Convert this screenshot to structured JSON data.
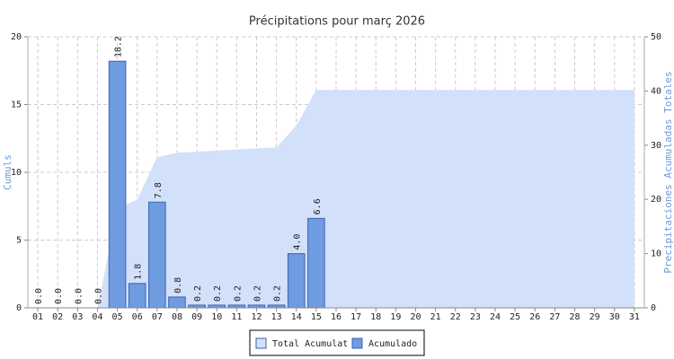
{
  "chart_data": {
    "type": "bar",
    "title": "Précipitations pour març 2026",
    "y_label": "Cumuls",
    "y2_label": "Precipitaciones Acumuladas Totales",
    "categories": [
      "01",
      "02",
      "03",
      "04",
      "05",
      "06",
      "07",
      "08",
      "09",
      "10",
      "11",
      "12",
      "13",
      "14",
      "15",
      "16",
      "17",
      "18",
      "19",
      "20",
      "21",
      "22",
      "23",
      "24",
      "25",
      "26",
      "27",
      "28",
      "29",
      "30",
      "31"
    ],
    "series": [
      {
        "name": "Total Acumulat",
        "type": "area",
        "axis": "y2",
        "color": "#d3e0fa",
        "stroke": "#3a5fa8",
        "values": [
          0,
          0,
          0,
          0,
          18.2,
          20.0,
          27.8,
          28.6,
          28.8,
          29.0,
          29.2,
          29.4,
          29.6,
          33.6,
          40.2,
          40.2,
          40.2,
          40.2,
          40.2,
          40.2,
          40.2,
          40.2,
          40.2,
          40.2,
          40.2,
          40.2,
          40.2,
          40.2,
          40.2,
          40.2,
          40.2
        ]
      },
      {
        "name": "Acumulado",
        "type": "bar",
        "color": "#6f9be0",
        "stroke": "#3a64b5",
        "values": [
          0,
          0,
          0,
          0,
          18.2,
          1.8,
          7.8,
          0.8,
          0.2,
          0.2,
          0.2,
          0.2,
          0.2,
          4.0,
          6.6,
          null,
          null,
          null,
          null,
          null,
          null,
          null,
          null,
          null,
          null,
          null,
          null,
          null,
          null,
          null,
          null
        ],
        "value_labels": [
          "0.0",
          "0.0",
          "0.0",
          "0.0",
          "18.2",
          "1.8",
          "7.8",
          "0.8",
          "0.2",
          "0.2",
          "0.2",
          "0.2",
          "0.2",
          "4.0",
          "6.6",
          null,
          null,
          null,
          null,
          null,
          null,
          null,
          null,
          null,
          null,
          null,
          null,
          null,
          null,
          null,
          null
        ]
      }
    ],
    "ylim": [
      0,
      20
    ],
    "yticks": [
      0,
      5,
      10,
      15,
      20
    ],
    "y2lim": [
      0,
      50
    ],
    "y2ticks": [
      0,
      10,
      20,
      30,
      40,
      50
    ],
    "grid": true,
    "legend": "bottom"
  }
}
